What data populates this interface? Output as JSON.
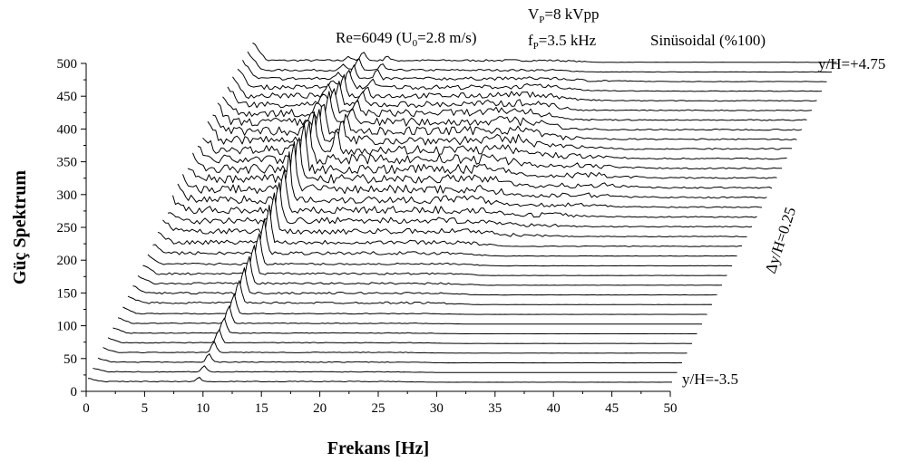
{
  "chart_data": {
    "type": "line",
    "subtype": "waterfall-3d",
    "xlabel": "Frekans [Hz]",
    "ylabel": "Güç Spektrum",
    "xlim": [
      0,
      50
    ],
    "ylim": [
      0,
      500
    ],
    "x_ticks": [
      "0",
      "5",
      "10",
      "15",
      "20",
      "25",
      "30",
      "35",
      "40",
      "45",
      "50"
    ],
    "y_ticks": [
      "0",
      "50",
      "100",
      "150",
      "200",
      "250",
      "300",
      "350",
      "400",
      "450",
      "500"
    ],
    "grid": false,
    "annotations": {
      "reynolds": "Re=6049 (U",
      "reynolds_sub": "0",
      "reynolds_tail": "=2.8 m/s)",
      "voltage": "V",
      "voltage_sub": "P",
      "voltage_tail": "=8 kVpp",
      "freq": "f",
      "freq_sub": "P",
      "freq_tail": "=3.5 kHz",
      "waveform": "Sinüsoidal (%100)",
      "top_trace": "y/H=+4.75",
      "bottom_trace": "y/H=-3.5",
      "step": "Δy/H=0.25"
    },
    "series_count": 34,
    "y_over_H_start": -3.5,
    "y_over_H_end": 4.75,
    "y_over_H_step": 0.25,
    "peak_frequency_hz": 9.5
  }
}
